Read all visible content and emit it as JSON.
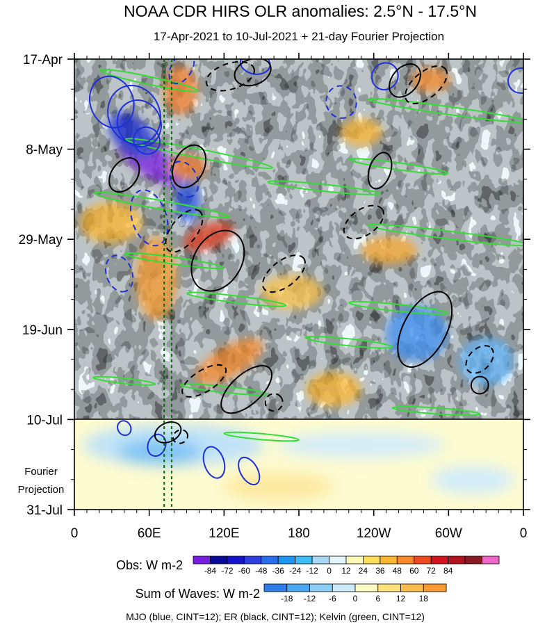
{
  "title": "NOAA CDR HIRS OLR anomalies: 2.5°N - 17.5°N",
  "subtitle": "17-Apr-2021 to 10-Jul-2021 + 21-day Fourier Projection",
  "projection_label_line1": "Fourier",
  "projection_label_line2": "Projection",
  "obs_legend_title": "Obs: W m-2",
  "waves_legend_title": "Sum of Waves: W m-2",
  "footer": "MJO (blue, CINT=12); ER (black, CINT=12); Kelvin (green, CINT=12)",
  "colors": {
    "mjo": "#1f2fd6",
    "er": "#000000",
    "kelvin": "#33dd33",
    "marker": "#006600"
  },
  "chart_data": {
    "type": "heatmap",
    "x_label": "",
    "y_label": "",
    "x_ticks": [
      "0",
      "60E",
      "120E",
      "180",
      "120W",
      "60W",
      "0"
    ],
    "x_tick_values_deg": [
      0,
      60,
      120,
      180,
      240,
      300,
      360
    ],
    "y_ticks": [
      "17-Apr",
      "8-May",
      "29-May",
      "19-Jun",
      "10-Jul",
      "31-Jul"
    ],
    "y_tick_days": [
      0,
      21,
      42,
      63,
      84,
      105
    ],
    "xlim_deg": [
      0,
      360
    ],
    "ylim_days": [
      0,
      105
    ],
    "observation_end_day": 84,
    "marker_longitudes_deg": [
      72,
      78
    ],
    "obs_levels": [
      "-84",
      "-72",
      "-60",
      "-48",
      "-36",
      "-24",
      "-12",
      "0",
      "12",
      "24",
      "36",
      "48",
      "60",
      "72",
      "84"
    ],
    "obs_colors": [
      "#7a1fe0",
      "#0a0a9a",
      "#1414cc",
      "#2f3ee0",
      "#2a6ef0",
      "#1e96f4",
      "#3cbdf7",
      "#a7d8f5",
      "#e3f5fc",
      "#fdfab8",
      "#fddd5a",
      "#fbb52e",
      "#f7892a",
      "#f14a1e",
      "#d4131c",
      "#b0121e",
      "#8a1a22",
      "#ee66c8"
    ],
    "wave_levels": [
      "-18",
      "-12",
      "-6",
      "0",
      "6",
      "12",
      "18"
    ],
    "wave_colors": [
      "#2f7de8",
      "#4aa8f2",
      "#8ccdf6",
      "#cdeafb",
      "#fdfbc4",
      "#fde17c",
      "#fbbe4c",
      "#f79a32"
    ],
    "mjo_contours": [
      {
        "lon": 48,
        "day": 13,
        "rx": 48,
        "ry": 6,
        "angle": 68,
        "sign": "positive"
      },
      {
        "lon": 52,
        "day": 15,
        "rx": 38,
        "ry": 5,
        "angle": 64,
        "sign": "positive"
      },
      {
        "lon": 58,
        "day": 19,
        "rx": 22,
        "ry": 3,
        "angle": 58,
        "sign": "positive"
      },
      {
        "lon": 30,
        "day": 10,
        "rx": 42,
        "ry": 5,
        "angle": 70,
        "sign": "positive"
      },
      {
        "lon": 86,
        "day": 2,
        "rx": 28,
        "ry": 2.4,
        "angle": -60,
        "sign": "negative"
      },
      {
        "lon": 60,
        "day": 37,
        "rx": 46,
        "ry": 4,
        "angle": 72,
        "sign": "negative"
      },
      {
        "lon": 88,
        "day": 28,
        "rx": 30,
        "ry": 3,
        "angle": 65,
        "sign": "negative"
      },
      {
        "lon": 36,
        "day": 50,
        "rx": 30,
        "ry": 3,
        "angle": 70,
        "sign": "negative"
      },
      {
        "lon": 145,
        "day": 1,
        "rx": 24,
        "ry": 2.5,
        "angle": 10,
        "sign": "positive"
      },
      {
        "lon": 249,
        "day": 4,
        "rx": 22,
        "ry": 3,
        "angle": -55,
        "sign": "positive"
      },
      {
        "lon": 358,
        "day": 5,
        "rx": 20,
        "ry": 3,
        "angle": 70,
        "sign": "positive"
      },
      {
        "lon": 214,
        "day": 10,
        "rx": 26,
        "ry": 3.5,
        "angle": 75,
        "sign": "negative"
      },
      {
        "lon": 66,
        "day": 90,
        "rx": 14,
        "ry": 2.6,
        "angle": 20,
        "sign": "positive"
      },
      {
        "lon": 112,
        "day": 94,
        "rx": 26,
        "ry": 2.3,
        "angle": 72,
        "sign": "positive"
      },
      {
        "lon": 140,
        "day": 96,
        "rx": 24,
        "ry": 2,
        "angle": 60,
        "sign": "positive"
      },
      {
        "lon": 40,
        "day": 86,
        "rx": 12,
        "ry": 1.5,
        "angle": 60,
        "sign": "positive"
      }
    ],
    "er_contours": [
      {
        "lon": 92,
        "day": 25,
        "rx": 36,
        "ry": 3.5,
        "angle": -64,
        "sign": "positive"
      },
      {
        "lon": 40,
        "day": 27,
        "rx": 30,
        "ry": 3,
        "angle": -55,
        "sign": "positive"
      },
      {
        "lon": 115,
        "day": 47,
        "rx": 52,
        "ry": 5.5,
        "angle": -58,
        "sign": "positive"
      },
      {
        "lon": 88,
        "day": 40,
        "rx": 40,
        "ry": 3,
        "angle": -52,
        "sign": "negative"
      },
      {
        "lon": 143,
        "day": 3,
        "rx": 30,
        "ry": 3,
        "angle": -20,
        "sign": "positive"
      },
      {
        "lon": 125,
        "day": 4,
        "rx": 40,
        "ry": 3,
        "angle": -18,
        "sign": "negative"
      },
      {
        "lon": 265,
        "day": 5,
        "rx": 30,
        "ry": 3,
        "angle": -50,
        "sign": "positive"
      },
      {
        "lon": 282,
        "day": 6,
        "rx": 40,
        "ry": 3,
        "angle": -40,
        "sign": "negative"
      },
      {
        "lon": 245,
        "day": 26,
        "rx": 30,
        "ry": 2.5,
        "angle": -72,
        "sign": "positive"
      },
      {
        "lon": 232,
        "day": 38,
        "rx": 36,
        "ry": 3,
        "angle": -35,
        "sign": "negative"
      },
      {
        "lon": 168,
        "day": 50,
        "rx": 40,
        "ry": 3,
        "angle": -38,
        "sign": "negative"
      },
      {
        "lon": 281,
        "day": 63,
        "rx": 66,
        "ry": 5,
        "angle": -62,
        "sign": "positive"
      },
      {
        "lon": 325,
        "day": 70,
        "rx": 26,
        "ry": 2.5,
        "angle": -45,
        "sign": "negative"
      },
      {
        "lon": 325,
        "day": 76,
        "rx": 14,
        "ry": 2,
        "angle": -45,
        "sign": "positive"
      },
      {
        "lon": 138,
        "day": 77,
        "rx": 50,
        "ry": 3.5,
        "angle": -42,
        "sign": "positive"
      },
      {
        "lon": 104,
        "day": 75,
        "rx": 40,
        "ry": 2.5,
        "angle": -32,
        "sign": "negative"
      },
      {
        "lon": 160,
        "day": 80,
        "rx": 14,
        "ry": 2,
        "angle": -40,
        "sign": "negative"
      },
      {
        "lon": 75,
        "day": 87,
        "rx": 22,
        "ry": 2.2,
        "angle": -25,
        "sign": "positive"
      },
      {
        "lon": 85,
        "day": 88,
        "rx": 12,
        "ry": 1.5,
        "angle": -30,
        "sign": "negative"
      }
    ],
    "kelvin_contours": [
      {
        "lon": 60,
        "day": 5,
        "rx": 80,
        "ry": 0.9,
        "angle": 12
      },
      {
        "lon": 300,
        "day": 12,
        "rx": 130,
        "ry": 0.9,
        "angle": 8
      },
      {
        "lon": 100,
        "day": 22,
        "rx": 120,
        "ry": 1,
        "angle": 11
      },
      {
        "lon": 260,
        "day": 25,
        "rx": 80,
        "ry": 0.8,
        "angle": 8
      },
      {
        "lon": 70,
        "day": 34,
        "rx": 110,
        "ry": 1,
        "angle": 10
      },
      {
        "lon": 200,
        "day": 30,
        "rx": 90,
        "ry": 0.8,
        "angle": 6
      },
      {
        "lon": 80,
        "day": 47,
        "rx": 80,
        "ry": 0.8,
        "angle": 8
      },
      {
        "lon": 300,
        "day": 41,
        "rx": 130,
        "ry": 0.9,
        "angle": 7
      },
      {
        "lon": 130,
        "day": 56,
        "rx": 80,
        "ry": 0.8,
        "angle": 7
      },
      {
        "lon": 260,
        "day": 58,
        "rx": 80,
        "ry": 0.8,
        "angle": 6
      },
      {
        "lon": 220,
        "day": 66,
        "rx": 70,
        "ry": 0.8,
        "angle": 6
      },
      {
        "lon": 120,
        "day": 77,
        "rx": 70,
        "ry": 0.7,
        "angle": 6
      },
      {
        "lon": 290,
        "day": 82,
        "rx": 70,
        "ry": 0.7,
        "angle": 4
      },
      {
        "lon": 150,
        "day": 88,
        "rx": 60,
        "ry": 0.7,
        "angle": 5
      },
      {
        "lon": 40,
        "day": 75,
        "rx": 50,
        "ry": 0.6,
        "angle": 6
      }
    ]
  }
}
